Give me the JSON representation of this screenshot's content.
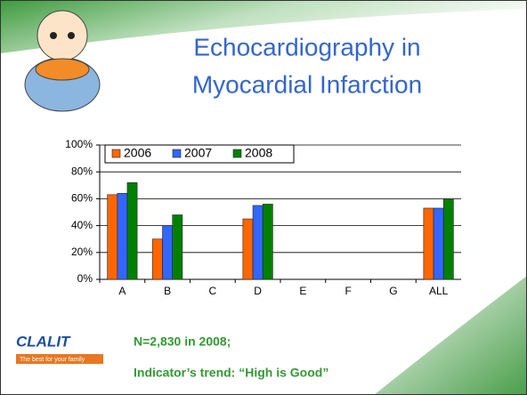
{
  "chart_data": {
    "type": "bar",
    "title": "Echocardiography in Myocardial Infarction",
    "categories": [
      "A",
      "B",
      "C",
      "D",
      "E",
      "F",
      "G",
      "ALL"
    ],
    "series": [
      {
        "name": "2006",
        "color": "#ff6600",
        "values": [
          63,
          30,
          null,
          45,
          null,
          null,
          null,
          53
        ]
      },
      {
        "name": "2007",
        "color": "#3366ff",
        "values": [
          64,
          40,
          null,
          55,
          null,
          null,
          null,
          53
        ]
      },
      {
        "name": "2008",
        "color": "#008000",
        "values": [
          72,
          48,
          null,
          56,
          null,
          null,
          null,
          60
        ]
      }
    ],
    "ylim": [
      0,
      100
    ],
    "yticks": [
      {
        "value": 0,
        "label": "0%"
      },
      {
        "value": 20,
        "label": "20%"
      },
      {
        "value": 40,
        "label": "40%"
      },
      {
        "value": 60,
        "label": "60%"
      },
      {
        "value": 80,
        "label": "80%"
      },
      {
        "value": 100,
        "label": "100%"
      }
    ],
    "grid": true,
    "legend": "top",
    "annotations": [
      "N=2,830 in 2008;",
      "Indicator’s trend: “High is Good”"
    ]
  },
  "logo": {
    "name": "CLALIT",
    "tagline": "The best for your family"
  }
}
